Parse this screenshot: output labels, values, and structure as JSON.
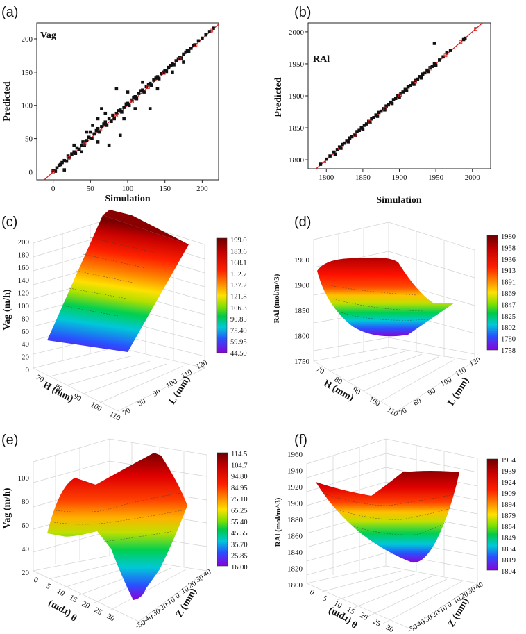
{
  "chart_data": [
    {
      "panel": "(a)",
      "type": "scatter",
      "label": "Vag",
      "xlabel": "Simulation",
      "ylabel": "Predicted",
      "xlim": [
        -22,
        222
      ],
      "ylim": [
        -12,
        224
      ],
      "xticks": [
        0,
        50,
        100,
        150,
        200
      ],
      "yticks": [
        0,
        50,
        100,
        150,
        200
      ],
      "points": [
        [
          0,
          2
        ],
        [
          3,
          1
        ],
        [
          5,
          6
        ],
        [
          8,
          10
        ],
        [
          10,
          11
        ],
        [
          12,
          14
        ],
        [
          15,
          17
        ],
        [
          18,
          16
        ],
        [
          20,
          24
        ],
        [
          22,
          22
        ],
        [
          25,
          27
        ],
        [
          28,
          30
        ],
        [
          30,
          28
        ],
        [
          32,
          36
        ],
        [
          35,
          34
        ],
        [
          38,
          40
        ],
        [
          40,
          45
        ],
        [
          42,
          40
        ],
        [
          45,
          47
        ],
        [
          48,
          52
        ],
        [
          50,
          60
        ],
        [
          52,
          50
        ],
        [
          55,
          57
        ],
        [
          58,
          62
        ],
        [
          60,
          65
        ],
        [
          62,
          60
        ],
        [
          65,
          68
        ],
        [
          68,
          72
        ],
        [
          70,
          75
        ],
        [
          72,
          70
        ],
        [
          75,
          80
        ],
        [
          78,
          76
        ],
        [
          80,
          85
        ],
        [
          82,
          80
        ],
        [
          85,
          88
        ],
        [
          88,
          92
        ],
        [
          90,
          93
        ],
        [
          92,
          90
        ],
        [
          95,
          97
        ],
        [
          98,
          102
        ],
        [
          100,
          103
        ],
        [
          102,
          100
        ],
        [
          105,
          108
        ],
        [
          108,
          112
        ],
        [
          110,
          113
        ],
        [
          112,
          110
        ],
        [
          115,
          118
        ],
        [
          118,
          122
        ],
        [
          120,
          123
        ],
        [
          122,
          120
        ],
        [
          125,
          128
        ],
        [
          128,
          131
        ],
        [
          130,
          133
        ],
        [
          132,
          130
        ],
        [
          135,
          138
        ],
        [
          138,
          141
        ],
        [
          140,
          143
        ],
        [
          142,
          140
        ],
        [
          145,
          148
        ],
        [
          148,
          150
        ],
        [
          150,
          152
        ],
        [
          152,
          151
        ],
        [
          155,
          157
        ],
        [
          158,
          160
        ],
        [
          160,
          163
        ],
        [
          162,
          161
        ],
        [
          165,
          167
        ],
        [
          168,
          170
        ],
        [
          170,
          172
        ],
        [
          172,
          171
        ],
        [
          175,
          177
        ],
        [
          178,
          180
        ],
        [
          180,
          182
        ],
        [
          182,
          181
        ],
        [
          185,
          186
        ],
        [
          188,
          190
        ],
        [
          190,
          191
        ],
        [
          195,
          197
        ],
        [
          200,
          201
        ],
        [
          205,
          206
        ],
        [
          210,
          211
        ],
        [
          215,
          216
        ],
        [
          45,
          60
        ],
        [
          60,
          80
        ],
        [
          75,
          40
        ],
        [
          90,
          55
        ],
        [
          85,
          125
        ],
        [
          130,
          95
        ],
        [
          65,
          95
        ],
        [
          60,
          45
        ],
        [
          28,
          40
        ],
        [
          100,
          120
        ],
        [
          15,
          3
        ],
        [
          38,
          30
        ],
        [
          53,
          70
        ],
        [
          70,
          88
        ],
        [
          110,
          95
        ],
        [
          120,
          135
        ],
        [
          95,
          80
        ],
        [
          140,
          125
        ],
        [
          160,
          150
        ],
        [
          175,
          165
        ]
      ]
    },
    {
      "panel": "(b)",
      "type": "scatter",
      "label": "RAl",
      "xlabel": "Simulation",
      "ylabel": "Predicted",
      "xlim": [
        1775,
        2025
      ],
      "ylim": [
        1786,
        2014
      ],
      "xticks": [
        1800,
        1850,
        1900,
        1950,
        2000
      ],
      "yticks": [
        1800,
        1850,
        1900,
        1950,
        2000
      ],
      "points": [
        [
          1792,
          1793
        ],
        [
          1800,
          1801
        ],
        [
          1805,
          1806
        ],
        [
          1810,
          1812
        ],
        [
          1812,
          1809
        ],
        [
          1815,
          1816
        ],
        [
          1818,
          1820
        ],
        [
          1820,
          1818
        ],
        [
          1822,
          1824
        ],
        [
          1825,
          1826
        ],
        [
          1828,
          1830
        ],
        [
          1830,
          1828
        ],
        [
          1832,
          1834
        ],
        [
          1835,
          1836
        ],
        [
          1838,
          1840
        ],
        [
          1840,
          1838
        ],
        [
          1842,
          1844
        ],
        [
          1845,
          1846
        ],
        [
          1848,
          1850
        ],
        [
          1850,
          1848
        ],
        [
          1852,
          1854
        ],
        [
          1855,
          1856
        ],
        [
          1858,
          1860
        ],
        [
          1860,
          1858
        ],
        [
          1862,
          1864
        ],
        [
          1865,
          1866
        ],
        [
          1868,
          1870
        ],
        [
          1870,
          1868
        ],
        [
          1872,
          1874
        ],
        [
          1875,
          1876
        ],
        [
          1878,
          1880
        ],
        [
          1880,
          1878
        ],
        [
          1882,
          1884
        ],
        [
          1885,
          1886
        ],
        [
          1888,
          1890
        ],
        [
          1890,
          1888
        ],
        [
          1892,
          1894
        ],
        [
          1895,
          1896
        ],
        [
          1898,
          1900
        ],
        [
          1900,
          1898
        ],
        [
          1902,
          1904
        ],
        [
          1905,
          1906
        ],
        [
          1908,
          1910
        ],
        [
          1910,
          1908
        ],
        [
          1912,
          1914
        ],
        [
          1915,
          1916
        ],
        [
          1918,
          1920
        ],
        [
          1920,
          1918
        ],
        [
          1922,
          1924
        ],
        [
          1925,
          1926
        ],
        [
          1928,
          1930
        ],
        [
          1930,
          1928
        ],
        [
          1932,
          1934
        ],
        [
          1935,
          1936
        ],
        [
          1938,
          1940
        ],
        [
          1940,
          1938
        ],
        [
          1942,
          1944
        ],
        [
          1945,
          1946
        ],
        [
          1948,
          1950
        ],
        [
          1950,
          1948
        ],
        [
          1955,
          1956
        ],
        [
          1960,
          1961
        ],
        [
          1965,
          1967
        ],
        [
          1970,
          1971
        ],
        [
          1988,
          1988
        ],
        [
          1990,
          1990
        ],
        [
          1948,
          1982
        ]
      ]
    },
    {
      "panel": "(c)",
      "type": "surface3d",
      "zlabel": "Vag (m/h)",
      "xlabel": "H (mm)",
      "ylabel": "L (mm)",
      "x_ticks": [
        "70",
        "80",
        "90",
        "100",
        "110"
      ],
      "y_ticks": [
        "70",
        "80",
        "90",
        "100",
        "110",
        "120"
      ],
      "z_ticks": [
        "0",
        "20",
        "40",
        "60",
        "80",
        "100",
        "120",
        "140",
        "160",
        "180",
        "200"
      ],
      "colorbar": [
        "199.0",
        "183.6",
        "168.1",
        "152.7",
        "137.2",
        "121.8",
        "106.3",
        "90.85",
        "75.40",
        "59.95",
        "44.50"
      ],
      "zrange": [
        44.5,
        199.0
      ]
    },
    {
      "panel": "(d)",
      "type": "surface3d",
      "zlabel": "RAl (mol/m^3)",
      "xlabel": "H (mm)",
      "ylabel": "L (mm)",
      "x_ticks": [
        "70",
        "80",
        "90",
        "100",
        "110"
      ],
      "y_ticks": [
        "70",
        "80",
        "90",
        "100",
        "110",
        "120"
      ],
      "z_ticks": [
        "1750",
        "1800",
        "1850",
        "1900",
        "1950"
      ],
      "colorbar": [
        "1980",
        "1958",
        "1936",
        "1913",
        "1891",
        "1869",
        "1847",
        "1825",
        "1802",
        "1780",
        "1758"
      ],
      "zrange": [
        1758,
        1980
      ]
    },
    {
      "panel": "(e)",
      "type": "surface3d",
      "zlabel": "Vag (m/h)",
      "xlabel": "θ (rpm)",
      "ylabel": "Z (mm)",
      "x_ticks": [
        "0",
        "5",
        "10",
        "15",
        "20",
        "25",
        "30"
      ],
      "y_ticks": [
        "-50",
        "-40",
        "-30",
        "-20",
        "-10",
        "0",
        "10",
        "20",
        "30",
        "40"
      ],
      "z_ticks": [
        "20",
        "40",
        "60",
        "80",
        "100"
      ],
      "colorbar": [
        "114.5",
        "104.7",
        "94.80",
        "84.95",
        "75.10",
        "65.25",
        "55.40",
        "45.55",
        "35.70",
        "25.85",
        "16.00"
      ],
      "zrange": [
        16.0,
        114.5
      ]
    },
    {
      "panel": "(f)",
      "type": "surface3d",
      "zlabel": "RAl (mol/m^3)",
      "xlabel": "θ (rpm)",
      "ylabel": "Z (mm)",
      "x_ticks": [
        "0",
        "5",
        "10",
        "15",
        "20",
        "25",
        "30"
      ],
      "y_ticks": [
        "-50",
        "-40",
        "-30",
        "-20",
        "-10",
        "0",
        "10",
        "20",
        "30",
        "40"
      ],
      "z_ticks": [
        "1800",
        "1820",
        "1840",
        "1860",
        "1880",
        "1900",
        "1920",
        "1940",
        "1960"
      ],
      "colorbar": [
        "1954",
        "1939",
        "1924",
        "1909",
        "1894",
        "1879",
        "1864",
        "1849",
        "1834",
        "1819",
        "1804"
      ],
      "zrange": [
        1804,
        1954
      ]
    }
  ]
}
